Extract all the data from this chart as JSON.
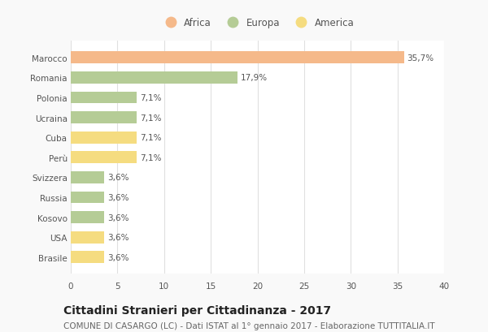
{
  "countries": [
    "Marocco",
    "Romania",
    "Polonia",
    "Ucraina",
    "Cuba",
    "Perù",
    "Svizzera",
    "Russia",
    "Kosovo",
    "USA",
    "Brasile"
  ],
  "values": [
    35.7,
    17.9,
    7.1,
    7.1,
    7.1,
    7.1,
    3.6,
    3.6,
    3.6,
    3.6,
    3.6
  ],
  "labels": [
    "35,7%",
    "17,9%",
    "7,1%",
    "7,1%",
    "7,1%",
    "7,1%",
    "3,6%",
    "3,6%",
    "3,6%",
    "3,6%",
    "3,6%"
  ],
  "colors": [
    "#F5B98A",
    "#B5CC96",
    "#B5CC96",
    "#B5CC96",
    "#F5DC80",
    "#F5DC80",
    "#B5CC96",
    "#B5CC96",
    "#B5CC96",
    "#F5DC80",
    "#F5DC80"
  ],
  "continent_labels": [
    "Africa",
    "Europa",
    "America"
  ],
  "continent_colors": [
    "#F5B98A",
    "#B5CC96",
    "#F5DC80"
  ],
  "title": "Cittadini Stranieri per Cittadinanza - 2017",
  "subtitle": "COMUNE DI CASARGO (LC) - Dati ISTAT al 1° gennaio 2017 - Elaborazione TUTTITALIA.IT",
  "xlim": [
    0,
    40
  ],
  "xticks": [
    0,
    5,
    10,
    15,
    20,
    25,
    30,
    35,
    40
  ],
  "background_color": "#f9f9f9",
  "plot_bg_color": "#ffffff",
  "grid_color": "#e0e0e0",
  "title_fontsize": 10,
  "subtitle_fontsize": 7.5,
  "label_fontsize": 7.5,
  "tick_fontsize": 7.5,
  "legend_fontsize": 8.5
}
